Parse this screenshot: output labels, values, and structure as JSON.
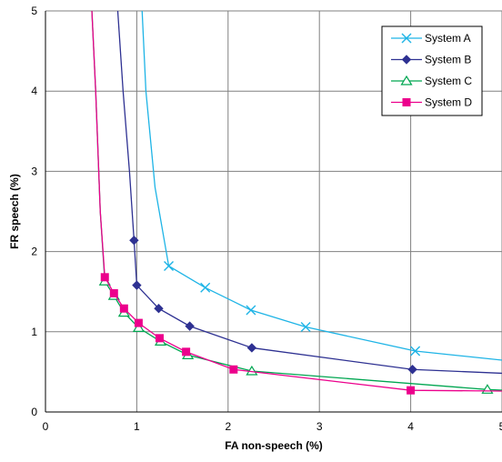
{
  "chart_data": {
    "type": "line",
    "xlabel": "FA non-speech (%)",
    "ylabel": "FR speech (%)",
    "xlim": [
      0,
      5
    ],
    "ylim": [
      0,
      5
    ],
    "xticks": [
      "0",
      "1",
      "2",
      "3",
      "4",
      "5"
    ],
    "yticks": [
      "0",
      "1",
      "2",
      "3",
      "4",
      "5"
    ],
    "grid": true,
    "legend": "top-right",
    "series": [
      {
        "name": "System A",
        "color": "#1EB4E6",
        "marker": "x",
        "points": [
          [
            1.05,
            5.2
          ],
          [
            1.1,
            4.0
          ],
          [
            1.2,
            2.8
          ],
          [
            1.35,
            1.82
          ],
          [
            1.75,
            1.55
          ],
          [
            2.25,
            1.27
          ],
          [
            2.85,
            1.06
          ],
          [
            4.05,
            0.76
          ],
          [
            5.05,
            0.64
          ]
        ]
      },
      {
        "name": "System B",
        "color": "#2E3192",
        "marker": "diamond",
        "points": [
          [
            0.78,
            5.2
          ],
          [
            0.85,
            4.0
          ],
          [
            0.92,
            3.0
          ],
          [
            0.97,
            2.14
          ],
          [
            1.0,
            1.58
          ],
          [
            1.24,
            1.29
          ],
          [
            1.58,
            1.07
          ],
          [
            2.26,
            0.8
          ],
          [
            4.02,
            0.53
          ],
          [
            5.05,
            0.48
          ]
        ]
      },
      {
        "name": "System C",
        "color": "#00A651",
        "marker": "triangle",
        "points": [
          [
            0.5,
            5.2
          ],
          [
            0.55,
            4.0
          ],
          [
            0.6,
            2.5
          ],
          [
            0.65,
            1.63
          ],
          [
            0.75,
            1.45
          ],
          [
            0.86,
            1.24
          ],
          [
            1.02,
            1.05
          ],
          [
            1.26,
            0.88
          ],
          [
            1.56,
            0.71
          ],
          [
            2.26,
            0.51
          ],
          [
            4.84,
            0.28
          ],
          [
            5.05,
            0.27
          ]
        ]
      },
      {
        "name": "System D",
        "color": "#EC008C",
        "marker": "square",
        "points": [
          [
            0.5,
            5.2
          ],
          [
            0.55,
            4.0
          ],
          [
            0.6,
            2.5
          ],
          [
            0.65,
            1.68
          ],
          [
            0.75,
            1.48
          ],
          [
            0.86,
            1.29
          ],
          [
            1.02,
            1.11
          ],
          [
            1.25,
            0.92
          ],
          [
            1.54,
            0.75
          ],
          [
            2.06,
            0.53
          ],
          [
            4.0,
            0.27
          ],
          [
            5.05,
            0.26
          ]
        ]
      }
    ]
  }
}
